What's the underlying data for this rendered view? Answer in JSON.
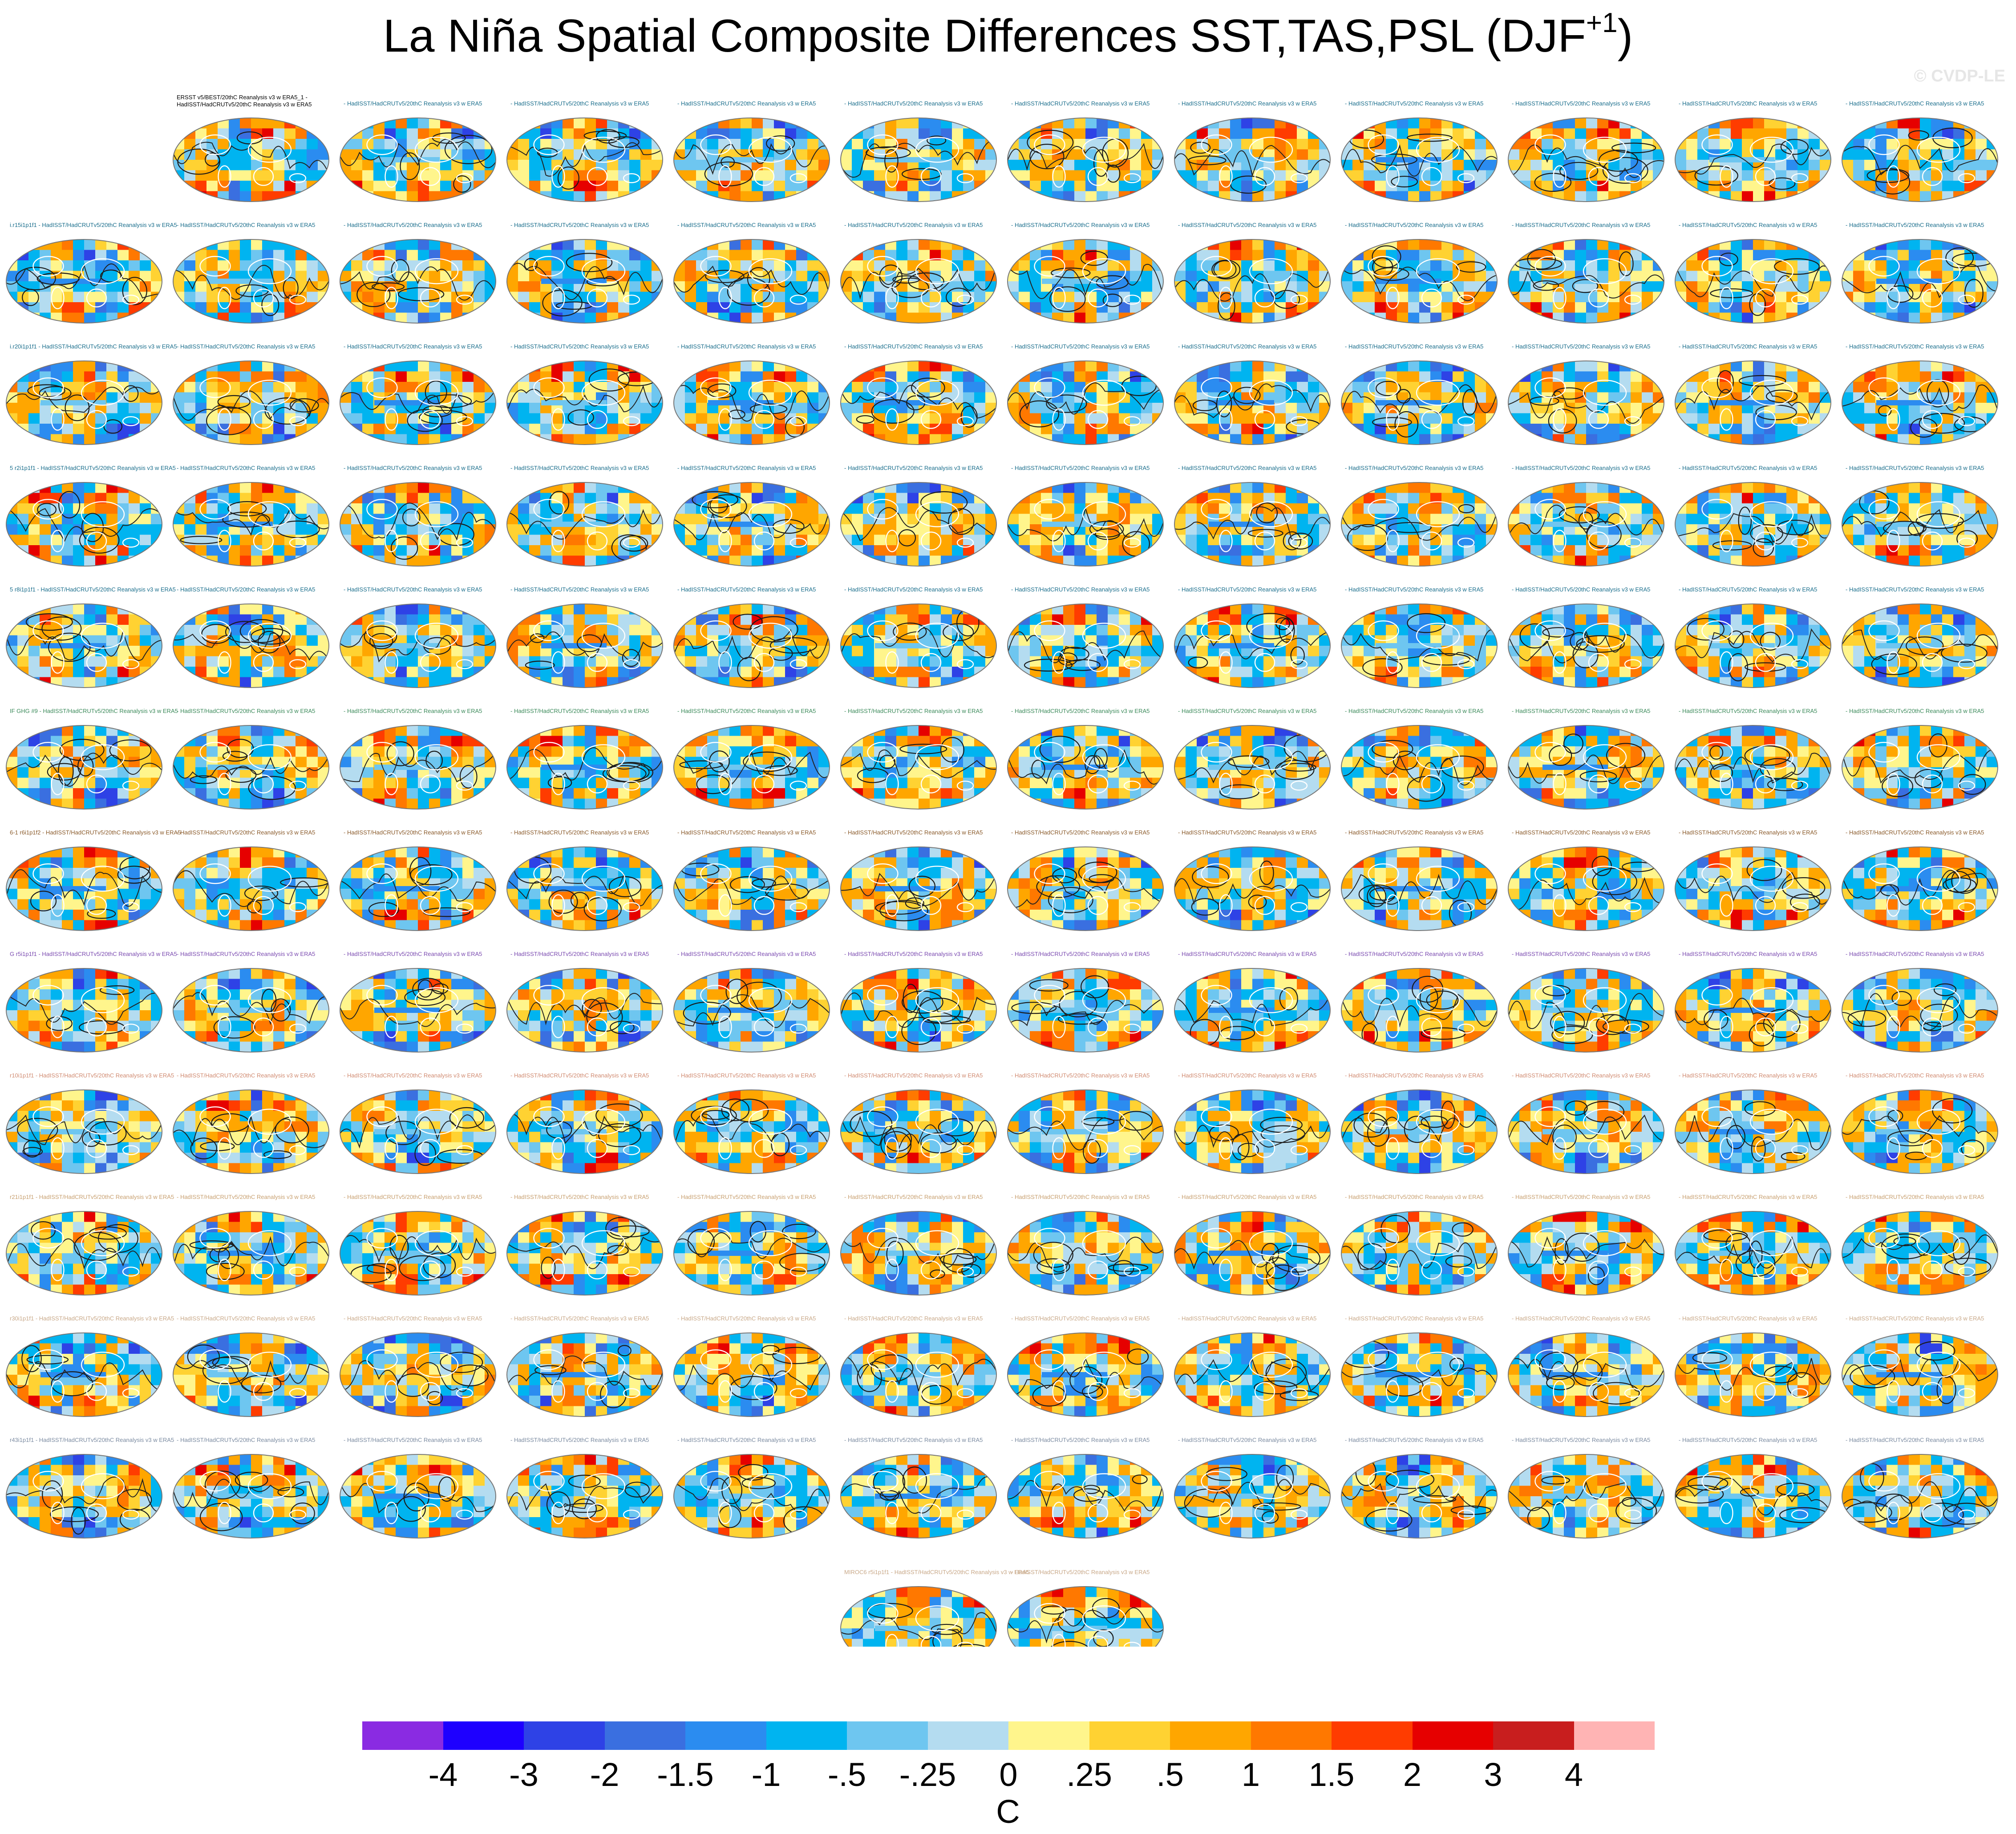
{
  "title": "La Niña Spatial Composite Differences SST,TAS,PSL (DJF",
  "title_sup": "+1",
  "title_close": ")",
  "credit": "© CVDP-LE",
  "units": "C",
  "colorbar": {
    "colors": [
      "#8a2be2",
      "#1e00ff",
      "#2e42e6",
      "#3a6fe0",
      "#2b8cf0",
      "#00b4f0",
      "#6ec6f0",
      "#b4dcf0",
      "#fff58c",
      "#ffd232",
      "#ffa600",
      "#ff7800",
      "#ff3c00",
      "#e60000",
      "#c81e1e",
      "#ffb4b4"
    ],
    "labels": [
      "-4",
      "-3",
      "-2",
      "-1.5",
      "-1",
      "-.5",
      "-.25",
      "0",
      ".25",
      ".5",
      "1",
      "1.5",
      "2",
      "3",
      "4"
    ]
  },
  "panel_titles": {
    "obs_line1": "ERSST v5/BEST/20thC Reanalysis v3 w ERA5_1 -",
    "obs_line2": "HadISST/HadCRUTv5/20thC Reanalysis v3 w ERA5",
    "generic": "HadISST/HadCRUTv5/20thC Reanalysis v3 w ERA5"
  },
  "chart_data": {
    "type": "heatmap",
    "title": "La Niña Spatial Composite Differences SST,TAS,PSL (DJF+1)",
    "variables": [
      "SST",
      "TAS",
      "PSL"
    ],
    "season": "DJF+1",
    "units": "C",
    "colorbar_levels": [
      -4,
      -3,
      -2,
      -1.5,
      -1,
      -0.5,
      -0.25,
      0,
      0.25,
      0.5,
      1,
      1.5,
      2,
      3,
      4
    ],
    "layout": {
      "rows": 13,
      "cols": 12,
      "panel_count": 145
    },
    "row_panel_counts": [
      11,
      12,
      12,
      12,
      12,
      12,
      12,
      12,
      12,
      12,
      12,
      12,
      2
    ],
    "row_prefixes": [
      "",
      "i.r15i1p1f1 -",
      "i.r20i1p1f1 -",
      "5 r2i1p1f1 -",
      "5 r8i1p1f1 -",
      "IF GHG #9 -",
      "6-1 r6i1p1f2 -",
      "G r5i1p1f1 -",
      "r10i1p1f1 -",
      "r21i1p1f1 -",
      "r30i1p1f1 -",
      "r43i1p1f1 -",
      "MIROC6 r5i1p1f1 -"
    ],
    "row_title_colors": [
      "#1a6e8c",
      "#1a6e8c",
      "#1a6e8c",
      "#1a6e8c",
      "#1a6e8c",
      "#3b8a5a",
      "#8a5a2a",
      "#7a4ab0",
      "#d08a70",
      "#c8a070",
      "#c8a888",
      "#7a8aa0",
      "#c8a888"
    ]
  }
}
